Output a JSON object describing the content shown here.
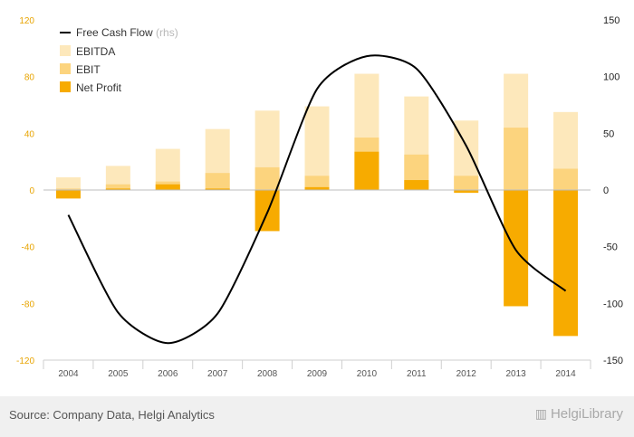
{
  "chart_data": {
    "type": "bar",
    "categories": [
      "2004",
      "2005",
      "2006",
      "2007",
      "2008",
      "2009",
      "2010",
      "2011",
      "2012",
      "2013",
      "2014"
    ],
    "series": [
      {
        "name": "EBITDA",
        "color": "#fde8bb",
        "values": [
          9,
          17,
          29,
          43,
          56,
          59,
          82,
          66,
          49,
          82,
          55
        ]
      },
      {
        "name": "EBIT",
        "color": "#fcd47e",
        "values": [
          1,
          4,
          6,
          12,
          16,
          10,
          37,
          25,
          10,
          44,
          15
        ]
      },
      {
        "name": "Net Profit",
        "color": "#f7ab00",
        "values": [
          -6,
          1,
          4,
          1,
          -29,
          2,
          27,
          7,
          -2,
          -82,
          -103
        ]
      },
      {
        "name": "Free Cash Flow",
        "rhs_tag": "(rhs)",
        "color": "#000000",
        "axis": "right",
        "values": [
          -22,
          -108,
          -135,
          -109,
          -20,
          89,
          118,
          107,
          39,
          -53,
          -89
        ]
      }
    ],
    "left_axis": {
      "ticks": [
        "120",
        "80",
        "40",
        "0",
        "-40",
        "-80",
        "-120"
      ],
      "min": -120,
      "max": 120,
      "color": "#e8a400"
    },
    "right_axis": {
      "ticks": [
        "150",
        "100",
        "50",
        "0",
        "-50",
        "-100",
        "-150"
      ],
      "min": -150,
      "max": 150
    },
    "grid": false,
    "legend_position": "top-left"
  },
  "footer": {
    "source": "Source: Company Data, Helgi Analytics",
    "logo": "HelgiLibrary",
    "logo_icon": "bookshelf-icon"
  }
}
